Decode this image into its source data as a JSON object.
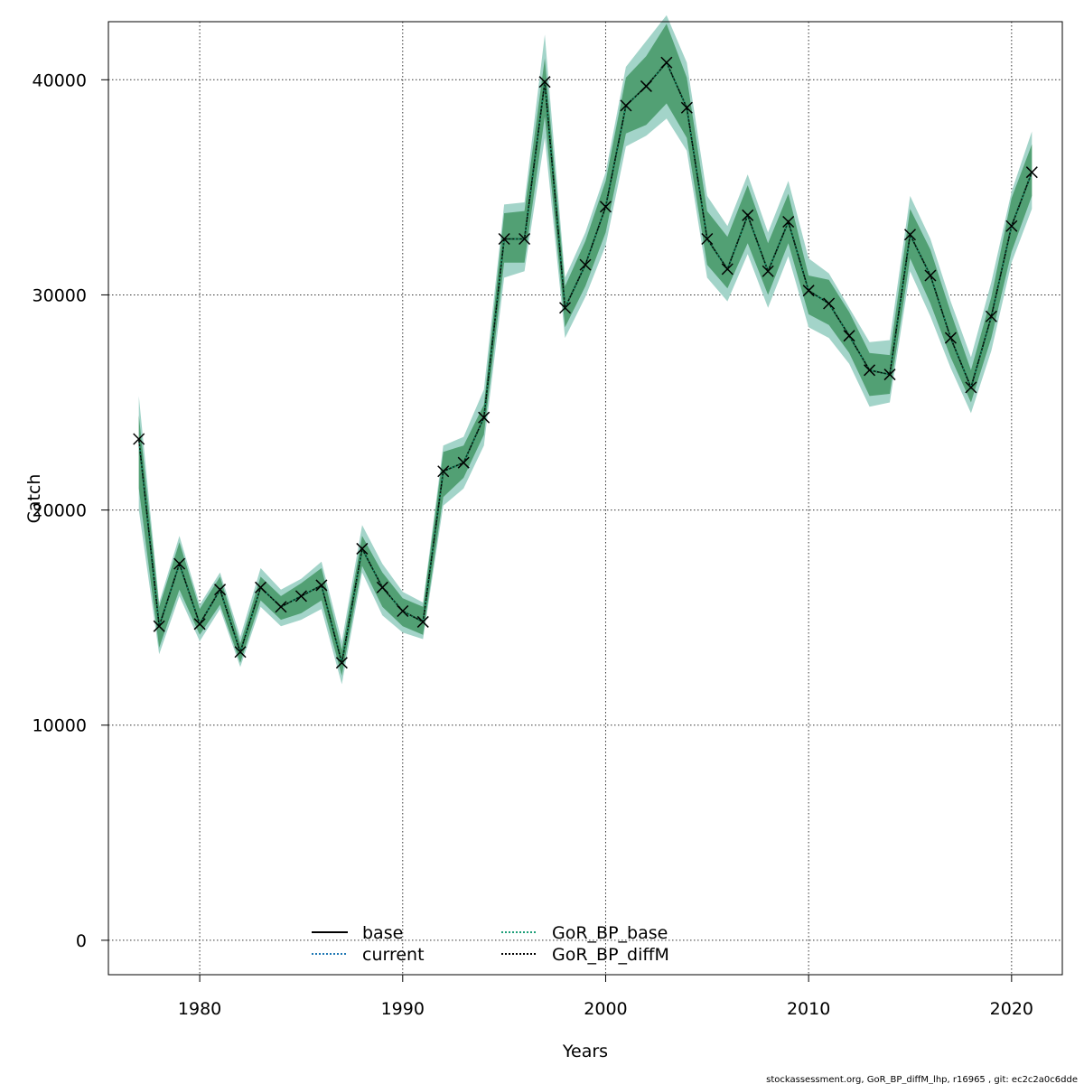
{
  "chart_data": {
    "type": "line",
    "xlabel": "Years",
    "ylabel": "Catch",
    "xlim": [
      1975.5,
      2022.5
    ],
    "ylim": [
      -1600,
      42700
    ],
    "xticks": [
      1980,
      1990,
      2000,
      2010,
      2020
    ],
    "yticks": [
      0,
      10000,
      20000,
      30000,
      40000
    ],
    "grid": true,
    "legend_position": "bottom-center",
    "legend": [
      {
        "name": "base",
        "style": "solid",
        "color": "#000000"
      },
      {
        "name": "current",
        "style": "dotted",
        "color": "#1f78b4"
      },
      {
        "name": "GoR_BP_base",
        "style": "dotted",
        "color": "#1b9e77"
      },
      {
        "name": "GoR_BP_diffM",
        "style": "dotted",
        "color": "#000000"
      }
    ],
    "x": [
      1977,
      1978,
      1979,
      1980,
      1981,
      1982,
      1983,
      1984,
      1985,
      1986,
      1987,
      1988,
      1989,
      1990,
      1991,
      1992,
      1993,
      1994,
      1995,
      1996,
      1997,
      1998,
      1999,
      2000,
      2001,
      2002,
      2003,
      2004,
      2005,
      2006,
      2007,
      2008,
      2009,
      2010,
      2011,
      2012,
      2013,
      2014,
      2015,
      2016,
      2017,
      2018,
      2019,
      2020,
      2021
    ],
    "series": [
      {
        "name": "GoR_BP_diffM",
        "marker": "x",
        "values": [
          23300,
          14600,
          17500,
          14700,
          16300,
          13400,
          16400,
          15500,
          16000,
          16500,
          12900,
          18200,
          16400,
          15300,
          14800,
          21800,
          22200,
          24300,
          32600,
          32600,
          39900,
          29400,
          31400,
          34100,
          38800,
          39700,
          40800,
          38700,
          32600,
          31200,
          33700,
          31100,
          33400,
          30200,
          29600,
          28100,
          26500,
          26300,
          32800,
          30900,
          28000,
          25700,
          29000,
          33200,
          35700
        ],
        "lower_outer": [
          20000,
          13300,
          16000,
          13900,
          15400,
          12700,
          15500,
          14600,
          14900,
          15400,
          11900,
          17100,
          15100,
          14300,
          14000,
          20200,
          21000,
          23000,
          30800,
          31100,
          37300,
          28000,
          29900,
          32300,
          36900,
          37400,
          38200,
          36700,
          30800,
          29700,
          31900,
          29400,
          31800,
          28500,
          28000,
          26800,
          24800,
          25000,
          31100,
          29000,
          26600,
          24500,
          27400,
          31500,
          34000
        ],
        "upper_outer": [
          25300,
          15700,
          18800,
          15600,
          17100,
          14100,
          17300,
          16300,
          16800,
          17600,
          13900,
          19300,
          17500,
          16200,
          15700,
          23000,
          23400,
          25600,
          34200,
          34300,
          42100,
          30800,
          32900,
          35700,
          40600,
          41800,
          43000,
          40800,
          34600,
          33200,
          35600,
          32900,
          35300,
          31700,
          31000,
          29400,
          27800,
          27900,
          34600,
          32600,
          29700,
          27100,
          30600,
          34800,
          37600
        ],
        "lower_inner": [
          21000,
          13600,
          16300,
          14200,
          15600,
          12900,
          15800,
          14900,
          15200,
          15800,
          12300,
          17400,
          15500,
          14600,
          14200,
          20600,
          21500,
          23500,
          31500,
          31500,
          38300,
          28500,
          30400,
          32900,
          37500,
          37900,
          38900,
          37300,
          31400,
          30300,
          32400,
          30000,
          32400,
          29100,
          28600,
          27300,
          25300,
          25400,
          31700,
          29600,
          27100,
          25000,
          28000,
          32000,
          34600
        ],
        "upper_inner": [
          24400,
          15500,
          18500,
          15400,
          16900,
          13800,
          16900,
          16000,
          16600,
          17300,
          13500,
          18800,
          17100,
          15900,
          15500,
          22700,
          23000,
          24900,
          33800,
          33900,
          41000,
          30400,
          32500,
          35300,
          40100,
          41100,
          42600,
          40100,
          33900,
          32700,
          35100,
          32400,
          34700,
          30900,
          30700,
          29200,
          27300,
          27200,
          34000,
          32100,
          29200,
          26500,
          29900,
          34500,
          37000
        ]
      }
    ]
  },
  "footer_text": "stockassessment.org, GoR_BP_diffM_lhp, r16965 , git: ec2c2a0c6dde",
  "colors": {
    "band_outer": "#a3d4c9",
    "band_inner": "#52a074",
    "grid": "#333333",
    "line": "#000000",
    "accent_blue": "#1f78b4",
    "accent_teal": "#1b9e77"
  }
}
